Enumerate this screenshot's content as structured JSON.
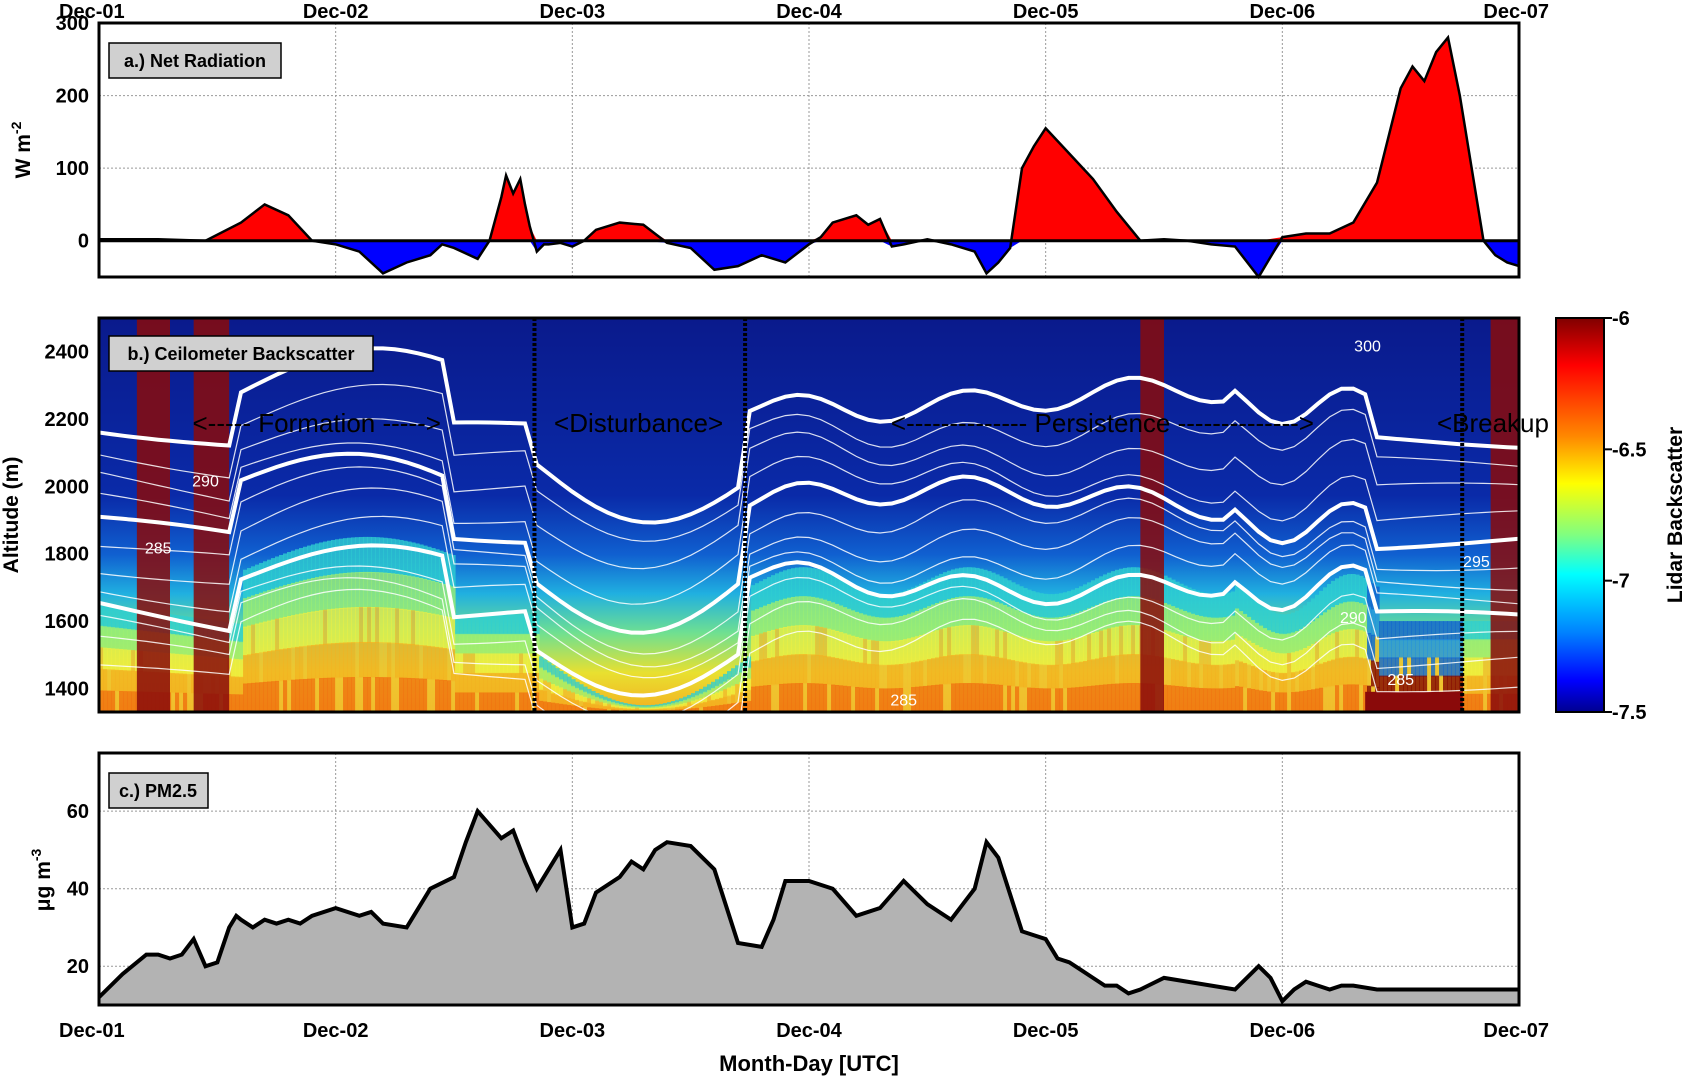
{
  "x_ticks": [
    "Dec-01",
    "Dec-02",
    "Dec-03",
    "Dec-04",
    "Dec-05",
    "Dec-06",
    "Dec-07"
  ],
  "x_label": "Month-Day [UTC]",
  "chart_data": [
    {
      "type": "area",
      "panel_label": "a.) Net Radiation",
      "ylabel": "W m",
      "ylabel_sup": "-2",
      "ylim": [
        -50,
        300
      ],
      "yticks": [
        0,
        100,
        200,
        300
      ],
      "grid": true,
      "colors": {
        "positive": "#ff0000",
        "negative": "#0000ff",
        "line": "#000000"
      },
      "x": [
        0,
        0.25,
        0.45,
        0.6,
        0.7,
        0.8,
        0.9,
        1.0,
        1.1,
        1.2,
        1.3,
        1.4,
        1.45,
        1.5,
        1.6,
        1.65,
        1.7,
        1.72,
        1.75,
        1.78,
        1.8,
        1.82,
        1.85,
        1.88,
        1.9,
        1.95,
        2.0,
        2.05,
        2.1,
        2.2,
        2.3,
        2.4,
        2.5,
        2.6,
        2.7,
        2.8,
        2.9,
        3.0,
        3.05,
        3.1,
        3.2,
        3.25,
        3.3,
        3.35,
        3.4,
        3.5,
        3.6,
        3.65,
        3.7,
        3.75,
        3.8,
        3.85,
        3.9,
        3.95,
        4.0,
        4.1,
        4.2,
        4.3,
        4.4,
        4.5,
        4.6,
        4.7,
        4.8,
        4.9,
        5.0,
        5.1,
        5.2,
        5.3,
        5.4,
        5.5,
        5.55,
        5.6,
        5.65,
        5.7,
        5.75,
        5.8,
        5.85,
        5.9,
        5.95,
        6.0
      ],
      "values": [
        2,
        2,
        0,
        25,
        50,
        35,
        0,
        -5,
        -15,
        -45,
        -30,
        -20,
        -5,
        -10,
        -25,
        0,
        60,
        90,
        65,
        85,
        50,
        20,
        -15,
        -5,
        -5,
        -3,
        -8,
        0,
        15,
        25,
        22,
        -3,
        -10,
        -40,
        -35,
        -20,
        -30,
        -5,
        5,
        25,
        35,
        22,
        30,
        -8,
        -5,
        2,
        -5,
        -10,
        -15,
        -45,
        -30,
        -10,
        100,
        130,
        155,
        120,
        85,
        40,
        0,
        2,
        0,
        -5,
        -8,
        -50,
        5,
        10,
        10,
        25,
        80,
        210,
        240,
        220,
        260,
        280,
        200,
        100,
        0,
        -20,
        -30,
        -35
      ],
      "xlim": [
        0,
        6
      ]
    },
    {
      "type": "heatmap",
      "panel_label": "b.) Ceilometer Backscatter",
      "ylabel": "Altitude (m)",
      "ylim": [
        1330,
        2500
      ],
      "yticks": [
        1400,
        1600,
        1800,
        2000,
        2200,
        2400
      ],
      "colorbar": {
        "label": "Lidar Backscatter",
        "ticks": [
          -6,
          -6.5,
          -7,
          -7.5
        ],
        "range": [
          -7.5,
          -6
        ]
      },
      "phases": [
        {
          "name": "Formation",
          "text": "<----- Formation ----->"
        },
        {
          "name": "Disturbance",
          "text": "<Disturbance>"
        },
        {
          "name": "Persistence",
          "text": "<-------------- Persistence -------------->"
        },
        {
          "name": "Breakup",
          "text": "<Breakup"
        }
      ],
      "phase_boundaries": [
        1.84,
        2.73,
        5.76
      ],
      "contour_labels": [
        "290",
        "285",
        "300",
        "290",
        "285",
        "295",
        "285"
      ]
    },
    {
      "type": "area",
      "panel_label": "c.) PM2.5",
      "ylabel": "μg m",
      "ylabel_sup": "-3",
      "ylim": [
        10,
        75
      ],
      "yticks": [
        20,
        40,
        60
      ],
      "grid": true,
      "colors": {
        "fill": "#b3b3b3",
        "line": "#000000"
      },
      "x": [
        0,
        0.1,
        0.2,
        0.25,
        0.3,
        0.35,
        0.4,
        0.45,
        0.5,
        0.55,
        0.58,
        0.6,
        0.65,
        0.7,
        0.75,
        0.8,
        0.85,
        0.9,
        1.0,
        1.1,
        1.15,
        1.2,
        1.3,
        1.4,
        1.5,
        1.55,
        1.6,
        1.7,
        1.75,
        1.8,
        1.85,
        1.9,
        1.95,
        2.0,
        2.05,
        2.1,
        2.2,
        2.25,
        2.3,
        2.35,
        2.4,
        2.5,
        2.55,
        2.6,
        2.7,
        2.8,
        2.85,
        2.9,
        3.0,
        3.1,
        3.2,
        3.3,
        3.4,
        3.5,
        3.6,
        3.65,
        3.7,
        3.75,
        3.8,
        3.9,
        4.0,
        4.05,
        4.1,
        4.15,
        4.2,
        4.25,
        4.3,
        4.35,
        4.4,
        4.5,
        4.6,
        4.7,
        4.8,
        4.9,
        4.95,
        5.0,
        5.05,
        5.1,
        5.15,
        5.2,
        5.25,
        5.3,
        5.4,
        5.5,
        5.6,
        5.7,
        5.8,
        5.9,
        5.95,
        6.0
      ],
      "values": [
        12,
        18,
        23,
        23,
        22,
        23,
        27,
        20,
        21,
        30,
        33,
        32,
        30,
        32,
        31,
        32,
        31,
        33,
        35,
        33,
        34,
        31,
        30,
        40,
        43,
        52,
        60,
        53,
        55,
        47,
        40,
        45,
        50,
        30,
        31,
        39,
        43,
        47,
        45,
        50,
        52,
        51,
        48,
        45,
        26,
        25,
        32,
        42,
        42,
        40,
        33,
        35,
        42,
        36,
        32,
        36,
        40,
        52,
        48,
        29,
        27,
        22,
        21,
        19,
        17,
        15,
        15,
        13,
        14,
        17,
        16,
        15,
        14,
        20,
        17,
        11,
        14,
        16,
        15,
        14,
        15,
        15,
        14,
        14,
        14,
        14,
        14,
        14,
        14,
        14
      ],
      "xlim": [
        0,
        6
      ]
    }
  ]
}
